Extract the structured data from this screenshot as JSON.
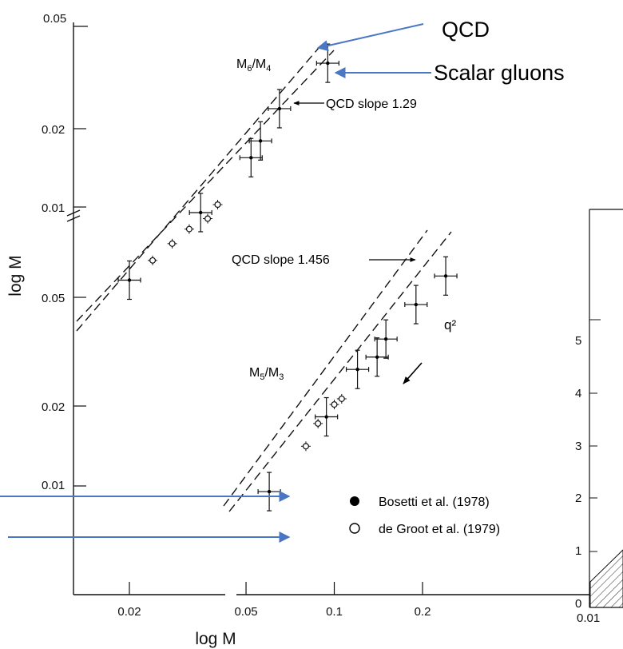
{
  "chart_data": [
    {
      "type": "scatter",
      "title": "",
      "xlabel": "log M",
      "ylabel": "log M",
      "x_scale": "log",
      "x_ticks": [
        "0.02",
        "0.05",
        "0.1",
        "0.2"
      ],
      "x_tick_values": [
        0.02,
        0.05,
        0.1,
        0.2
      ],
      "y_ticks_upper": [
        "0.05",
        "0.02",
        "0.01"
      ],
      "y_ticks_lower": [
        "0.05",
        "0.02",
        "0.01"
      ],
      "grid": false,
      "legend": "bottom-right",
      "legend_entries": [
        {
          "marker": "filled-circle",
          "label": "Bosetti et al. (1978)"
        },
        {
          "marker": "open-circle",
          "label": "de Groot et al. (1979)"
        }
      ],
      "series": [
        {
          "name": "M6/M4",
          "points": [
            {
              "x": 0.02,
              "y": 0.0052,
              "kind": "filled"
            },
            {
              "x": 0.024,
              "y": 0.0062,
              "kind": "open"
            },
            {
              "x": 0.028,
              "y": 0.0072,
              "kind": "open"
            },
            {
              "x": 0.032,
              "y": 0.0082,
              "kind": "open"
            },
            {
              "x": 0.035,
              "y": 0.0095,
              "kind": "filled"
            },
            {
              "x": 0.037,
              "y": 0.009,
              "kind": "open"
            },
            {
              "x": 0.04,
              "y": 0.0102,
              "kind": "open"
            },
            {
              "x": 0.052,
              "y": 0.0155,
              "kind": "filled"
            },
            {
              "x": 0.056,
              "y": 0.018,
              "kind": "filled"
            },
            {
              "x": 0.065,
              "y": 0.024,
              "kind": "filled"
            },
            {
              "x": 0.095,
              "y": 0.036,
              "kind": "filled"
            }
          ]
        },
        {
          "name": "M5/M3",
          "points": [
            {
              "x": 0.06,
              "y": 0.0095,
              "kind": "filled"
            },
            {
              "x": 0.08,
              "y": 0.014,
              "kind": "open"
            },
            {
              "x": 0.088,
              "y": 0.017,
              "kind": "open"
            },
            {
              "x": 0.094,
              "y": 0.018,
              "kind": "filled"
            },
            {
              "x": 0.1,
              "y": 0.02,
              "kind": "open"
            },
            {
              "x": 0.106,
              "y": 0.021,
              "kind": "open"
            },
            {
              "x": 0.12,
              "y": 0.027,
              "kind": "filled"
            },
            {
              "x": 0.14,
              "y": 0.03,
              "kind": "filled"
            },
            {
              "x": 0.15,
              "y": 0.035,
              "kind": "filled"
            },
            {
              "x": 0.19,
              "y": 0.047,
              "kind": "filled"
            },
            {
              "x": 0.24,
              "y": 0.06,
              "kind": "filled"
            }
          ]
        }
      ],
      "annotations": {
        "ratio_upper": "M6/M4",
        "ratio_lower": "M5/M3",
        "slope_upper": "QCD slope 1.29",
        "slope_lower": "QCD slope 1.456",
        "q2": "q²"
      }
    },
    {
      "type": "area",
      "note": "second chart partially visible at right edge",
      "y_ticks": [
        "5",
        "4",
        "3",
        "2",
        "1",
        "0"
      ],
      "x_ticks": [
        "0.01"
      ]
    }
  ],
  "overlay_labels": {
    "qcd": "QCD",
    "scalar_gluons": "Scalar gluons"
  },
  "colors": {
    "arrow_blue": "#4a76c4",
    "ink": "#111111"
  }
}
